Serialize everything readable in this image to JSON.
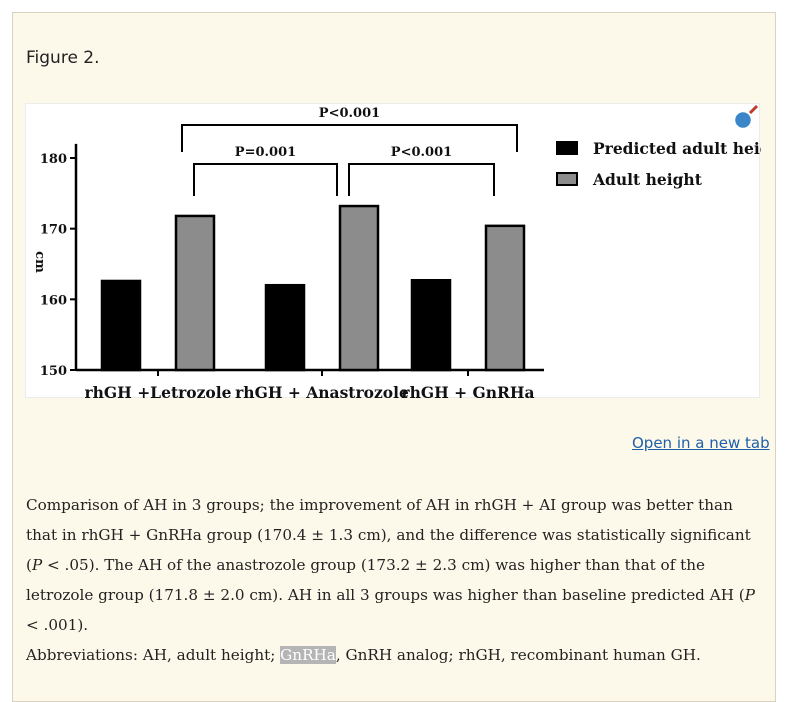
{
  "figure": {
    "label": "Figure 2.",
    "open_link": "Open in a new tab",
    "zoom_icon": "magnifier-icon"
  },
  "chart_data": {
    "type": "bar",
    "categories": [
      "rhGH +Letrozole",
      "rhGH + Anastrozole",
      "rhGH + GnRHa"
    ],
    "series": [
      {
        "name": "Predicted adult height",
        "values": [
          162.6,
          162.0,
          162.7
        ],
        "color": "#000000"
      },
      {
        "name": "Adult height",
        "values": [
          171.8,
          173.2,
          170.4
        ],
        "color": "#8c8c8c"
      }
    ],
    "ylabel": "cm",
    "ylim": [
      150,
      182
    ],
    "yticks": [
      150,
      160,
      170,
      180
    ],
    "legend_position": "top-right",
    "annotations": [
      {
        "label": "P<0.001",
        "from_category": 0,
        "to_category": 2
      },
      {
        "label": "P=0.001",
        "from_category": 0,
        "to_category": 1
      },
      {
        "label": "P<0.001",
        "from_category": 1,
        "to_category": 2
      }
    ]
  },
  "caption": {
    "p1": "Comparison of AH in 3 groups; the improvement of AH in rhGH + AI group was better than that in rhGH + GnRHa group (170.4 ± 1.3 cm), and the difference was statistically significant (",
    "p1_italic": "P",
    "p2": " < .05). The AH of the anastrozole group (173.2 ± 2.3 cm) was higher than that of the letrozole group (171.8 ± 2.0 cm). AH in all 3 groups was higher than baseline predicted AH (",
    "p2_italic": "P",
    "p3": " < .001)."
  },
  "abbreviations": {
    "prefix": "Abbreviations: AH, adult height; ",
    "highlight": "GnRHa",
    "suffix": ", GnRH analog; rhGH, recombinant human GH."
  }
}
